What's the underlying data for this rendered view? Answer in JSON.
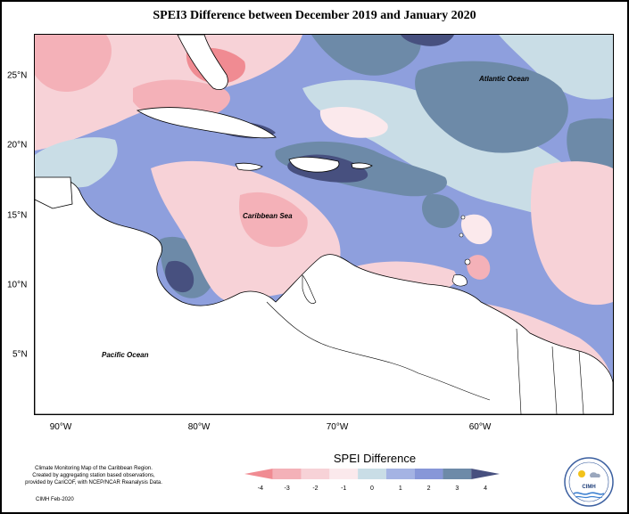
{
  "title": "SPEI3 Difference between December 2019 and January 2020",
  "map_labels": {
    "atlantic": "Atlantic Ocean",
    "caribbean": "Caribbean Sea",
    "pacific": "Pacific Ocean"
  },
  "x_axis": {
    "ticks": [
      "90°W",
      "80°W",
      "70°W",
      "60°W"
    ]
  },
  "y_axis": {
    "ticks": [
      "25°N",
      "20°N",
      "15°N",
      "10°N",
      "5°N"
    ]
  },
  "legend": {
    "title": "SPEI Difference",
    "tick_labels": [
      "-4",
      "-3",
      "-2",
      "-1",
      "0",
      "1",
      "2",
      "3",
      "4"
    ],
    "colors": [
      "#f08b92",
      "#f4b1b8",
      "#f7d2d7",
      "#fbe9ec",
      "#c9dde6",
      "#a4b3e3",
      "#8797d8",
      "#6d8aa8",
      "#47507f"
    ]
  },
  "footnote": {
    "line1": "Climate Monitoring Map of the Caribbean Region.",
    "line2": "Created by aggregating station based observations,",
    "line3": "provided by CariCOF, with NCEP/NCAR Reanalysis Data."
  },
  "credit": "CIMH Feb-2020",
  "logo": {
    "text": "CIMH"
  }
}
